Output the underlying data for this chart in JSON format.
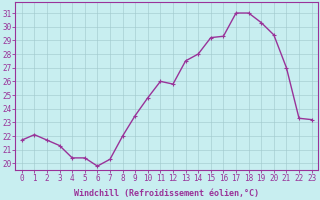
{
  "x": [
    0,
    1,
    2,
    3,
    4,
    5,
    6,
    7,
    8,
    9,
    10,
    11,
    12,
    13,
    14,
    15,
    16,
    17,
    18,
    19,
    20,
    21,
    22,
    23
  ],
  "y": [
    21.7,
    22.1,
    21.7,
    21.3,
    20.4,
    20.4,
    19.8,
    20.3,
    22.0,
    23.5,
    24.8,
    26.0,
    25.8,
    27.5,
    28.0,
    29.2,
    29.3,
    31.0,
    31.0,
    30.3,
    29.4,
    27.0,
    23.3,
    23.2
  ],
  "line_color": "#993399",
  "marker": "+",
  "bg_color": "#c8eef0",
  "grid_color": "#a0c8cc",
  "xlabel": "Windchill (Refroidissement éolien,°C)",
  "xlabel_fontsize": 6.0,
  "xtick_labels": [
    "0",
    "1",
    "2",
    "3",
    "4",
    "5",
    "6",
    "7",
    "8",
    "9",
    "10",
    "11",
    "12",
    "13",
    "14",
    "15",
    "16",
    "17",
    "18",
    "19",
    "20",
    "21",
    "22",
    "23"
  ],
  "ytick_labels": [
    "20",
    "21",
    "22",
    "23",
    "24",
    "25",
    "26",
    "27",
    "28",
    "29",
    "30",
    "31"
  ],
  "ytick_vals": [
    20,
    21,
    22,
    23,
    24,
    25,
    26,
    27,
    28,
    29,
    30,
    31
  ],
  "ylim": [
    19.5,
    31.8
  ],
  "xlim": [
    -0.5,
    23.5
  ],
  "tick_fontsize": 5.5,
  "linewidth": 1.0,
  "markersize": 3.5,
  "label_color": "#993399",
  "spine_color": "#993399"
}
